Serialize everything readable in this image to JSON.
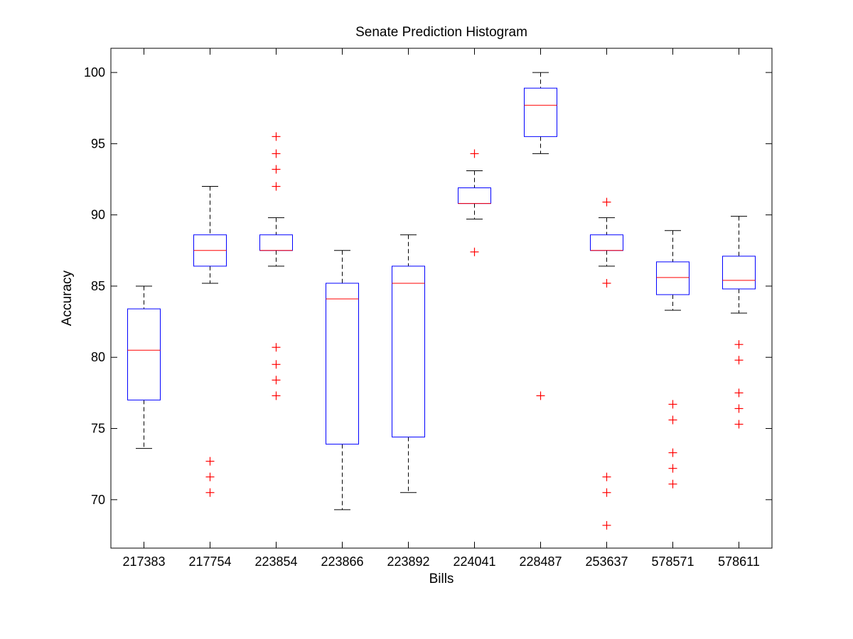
{
  "chart_data": {
    "type": "box",
    "title": "Senate Prediction Histogram",
    "xlabel": "Bills",
    "ylabel": "Accuracy",
    "ylim": [
      66.6,
      101.7
    ],
    "yticks": [
      70,
      75,
      80,
      85,
      90,
      95,
      100
    ],
    "categories": [
      "217383",
      "217754",
      "223854",
      "223866",
      "223892",
      "224041",
      "228487",
      "253637",
      "578571",
      "578611"
    ],
    "boxes": [
      {
        "category": "217383",
        "whisker_low": 73.6,
        "q1": 77.0,
        "median": 80.5,
        "q3": 83.4,
        "whisker_high": 85.0,
        "outliers": []
      },
      {
        "category": "217754",
        "whisker_low": 85.2,
        "q1": 86.4,
        "median": 87.5,
        "q3": 88.6,
        "whisker_high": 92.0,
        "outliers": [
          72.7,
          71.6,
          70.5
        ]
      },
      {
        "category": "223854",
        "whisker_low": 86.4,
        "q1": 87.5,
        "median": 87.5,
        "q3": 88.6,
        "whisker_high": 89.8,
        "outliers": [
          95.5,
          94.3,
          93.2,
          92.0,
          80.7,
          79.5,
          78.4,
          77.3
        ]
      },
      {
        "category": "223866",
        "whisker_low": 69.3,
        "q1": 73.9,
        "median": 84.1,
        "q3": 85.2,
        "whisker_high": 87.5,
        "outliers": []
      },
      {
        "category": "223892",
        "whisker_low": 70.5,
        "q1": 74.4,
        "median": 85.2,
        "q3": 86.4,
        "whisker_high": 88.6,
        "outliers": []
      },
      {
        "category": "224041",
        "whisker_low": 89.7,
        "q1": 90.8,
        "median": 90.8,
        "q3": 91.9,
        "whisker_high": 93.1,
        "outliers": [
          94.3,
          87.4
        ]
      },
      {
        "category": "228487",
        "whisker_low": 94.3,
        "q1": 95.5,
        "median": 97.7,
        "q3": 98.9,
        "whisker_high": 100.0,
        "outliers": [
          77.3
        ]
      },
      {
        "category": "253637",
        "whisker_low": 86.4,
        "q1": 87.5,
        "median": 87.5,
        "q3": 88.6,
        "whisker_high": 89.8,
        "outliers": [
          90.9,
          85.2,
          71.6,
          70.5,
          68.2
        ]
      },
      {
        "category": "578571",
        "whisker_low": 83.3,
        "q1": 84.4,
        "median": 85.6,
        "q3": 86.7,
        "whisker_high": 88.9,
        "outliers": [
          76.7,
          75.6,
          73.3,
          72.2,
          71.1
        ]
      },
      {
        "category": "578611",
        "whisker_low": 83.1,
        "q1": 84.8,
        "median": 85.4,
        "q3": 87.1,
        "whisker_high": 89.9,
        "outliers": [
          80.9,
          79.8,
          77.5,
          76.4,
          75.3
        ]
      }
    ],
    "colors": {
      "box": "#0000ff",
      "median": "#ff0000",
      "outlier": "#ff0000",
      "whisker": "#000000",
      "axes": "#000000"
    },
    "grid": false,
    "legend": "none"
  }
}
